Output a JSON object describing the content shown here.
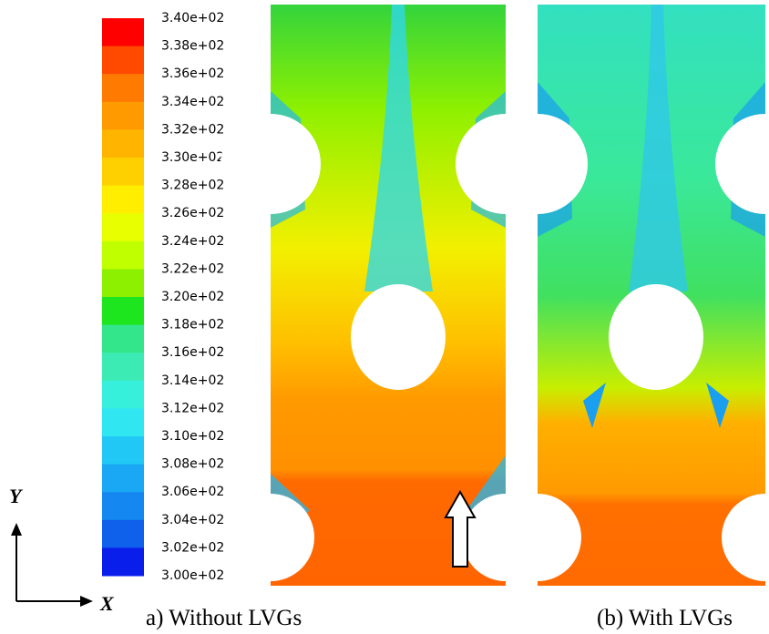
{
  "colorbar": {
    "labels": [
      "3.40e+02",
      "3.38e+02",
      "3.36e+02",
      "3.34e+02",
      "3.32e+02",
      "3.30e+02",
      "3.28e+02",
      "3.26e+02",
      "3.24e+02",
      "3.22e+02",
      "3.20e+02",
      "3.18e+02",
      "3.16e+02",
      "3.14e+02",
      "3.12e+02",
      "3.10e+02",
      "3.08e+02",
      "3.06e+02",
      "3.04e+02",
      "3.02e+02",
      "3.00e+02"
    ],
    "colors": [
      "#ff0000",
      "#ff4a00",
      "#ff7a00",
      "#ff9a00",
      "#ffb400",
      "#ffd000",
      "#ffee00",
      "#e8ff00",
      "#bfff00",
      "#8cf000",
      "#1ee61e",
      "#33e68c",
      "#3cebb4",
      "#36f0dc",
      "#30e6f0",
      "#22c8f5",
      "#1aa8f5",
      "#1488f0",
      "#0f60eb",
      "#0a1eeb"
    ]
  },
  "panels": [
    {
      "caption": "a) Without LVGs"
    },
    {
      "caption": "(b) With LVGs"
    }
  ],
  "axes": {
    "y_label": "Y",
    "x_label": "X"
  }
}
